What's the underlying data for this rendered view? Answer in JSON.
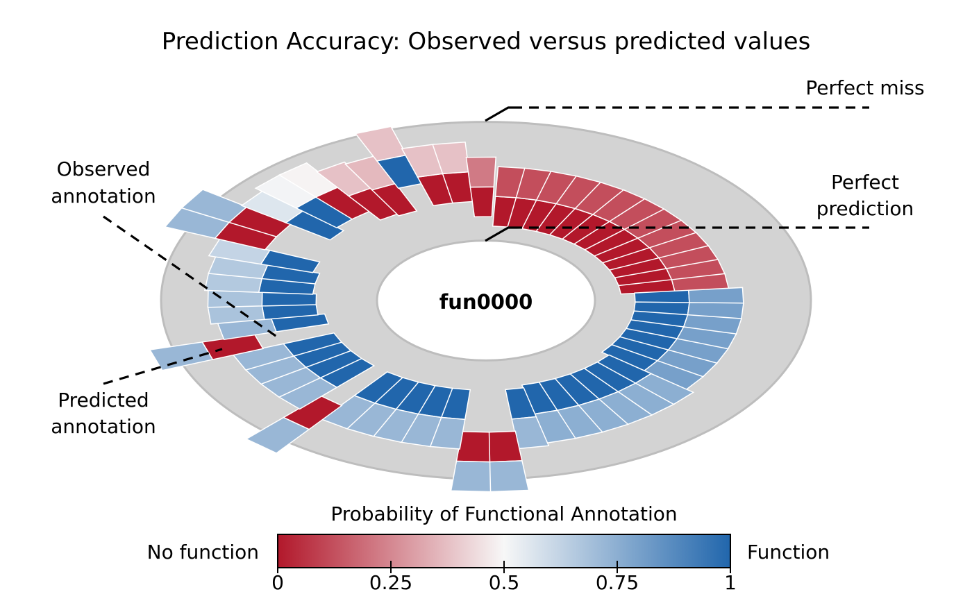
{
  "chart_data": {
    "type": "radial-bar",
    "title": "Prediction Accuracy: Observed versus predicted values",
    "center_label": "fun0000",
    "annotations": {
      "perfect_miss": "Perfect miss",
      "perfect_prediction": [
        "Perfect",
        "prediction"
      ],
      "observed": [
        "Observed",
        "annotation"
      ],
      "predicted": [
        "Predicted",
        "annotation"
      ]
    },
    "series": [
      {
        "name": "Observed annotation",
        "values": [
          0,
          0,
          0,
          0,
          0,
          0,
          0,
          0,
          0,
          0,
          0,
          0,
          0,
          1,
          1,
          1,
          1,
          1,
          1,
          1,
          1,
          1,
          1,
          1,
          1,
          1,
          1,
          0,
          0,
          1,
          1,
          1,
          1,
          1,
          0,
          1,
          1,
          1,
          1,
          0,
          1,
          1,
          1,
          1,
          1,
          1,
          0,
          0,
          1,
          1,
          0,
          0,
          0,
          1,
          0,
          0,
          0
        ]
      },
      {
        "name": "Predicted annotation",
        "values": [
          0.12,
          0.12,
          0.12,
          0.12,
          0.12,
          0.12,
          0.12,
          0.12,
          0.12,
          0.12,
          0.12,
          0.12,
          0.12,
          0.8,
          0.8,
          0.8,
          0.8,
          0.8,
          0.8,
          0.8,
          0.75,
          0.75,
          0.75,
          0.75,
          0.75,
          0.75,
          0.72,
          0.72,
          0.72,
          0.72,
          0.72,
          0.72,
          0.72,
          0.72,
          0.72,
          0.72,
          0.72,
          0.72,
          0.72,
          0.72,
          0.72,
          0.68,
          0.68,
          0.66,
          0.66,
          0.62,
          0.72,
          0.72,
          0.56,
          0.51,
          0.49,
          0.38,
          0.36,
          0.38,
          0.38,
          0.38,
          0.22
        ]
      }
    ],
    "colorbar": {
      "title": "Probability of Functional Annotation",
      "left_label": "No function",
      "right_label": "Function",
      "ticks": [
        "0",
        "0.25",
        "0.5",
        "0.75",
        "1"
      ],
      "tick_values": [
        0,
        0.25,
        0.5,
        0.75,
        1
      ],
      "range": [
        0,
        1
      ],
      "colormap": [
        "#b2182b",
        "#f7f7f7",
        "#2166ac"
      ]
    },
    "colors": {
      "ring": "#d3d3d3",
      "ring_edge": "#bdbdbd",
      "no_function": "#b2182b",
      "neutral": "#f7f7f7",
      "function": "#2166ac"
    }
  }
}
